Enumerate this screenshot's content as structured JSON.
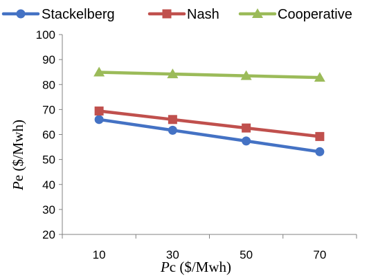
{
  "chart_data": {
    "type": "line",
    "categories": [
      "10",
      "30",
      "50",
      "70"
    ],
    "series": [
      {
        "name": "Stackelberg",
        "values": [
          66,
          61.7,
          57.4,
          53.1
        ],
        "color": "#4472C4",
        "marker": "circle"
      },
      {
        "name": "Nash",
        "values": [
          69.4,
          66,
          62.6,
          59.2
        ],
        "color": "#C0504D",
        "marker": "square"
      },
      {
        "name": "Cooperative",
        "values": [
          84.9,
          84.2,
          83.5,
          82.8
        ],
        "color": "#9BBB59",
        "marker": "triangle"
      }
    ],
    "ylim": [
      20,
      100
    ],
    "yticks": [
      "20",
      "30",
      "40",
      "50",
      "60",
      "70",
      "80",
      "90",
      "100"
    ],
    "xlabel": {
      "symbol": "P",
      "sub": "c",
      "unit": " ($/Mwh)"
    },
    "ylabel": {
      "symbol": "P",
      "sub": "e",
      "unit": " ($/Mwh)"
    },
    "grid": false,
    "legend": "top"
  }
}
